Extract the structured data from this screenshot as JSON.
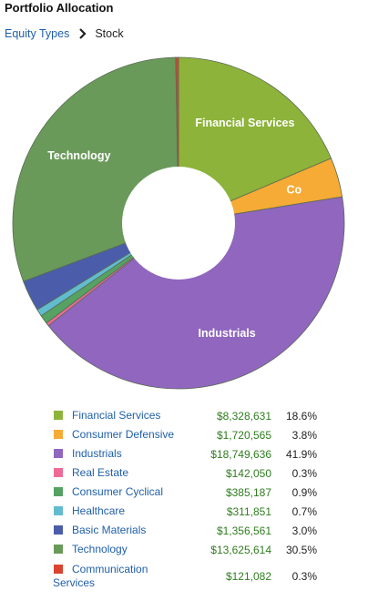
{
  "header": {
    "title": "Portfolio Allocation"
  },
  "breadcrumb": {
    "parent": "Equity Types",
    "current": "Stock"
  },
  "chart_data": {
    "type": "pie",
    "style": "donut",
    "categories": [
      "Financial Services",
      "Consumer Defensive",
      "Industrials",
      "Real Estate",
      "Consumer Cyclical",
      "Healthcare",
      "Basic Materials",
      "Technology",
      "Communication Services"
    ],
    "values": [
      8328631,
      1720565,
      18749636,
      142050,
      385187,
      311851,
      1356561,
      13625614,
      121082
    ],
    "colors": [
      "#8db33a",
      "#f5ab35",
      "#9066bf",
      "#ee6a97",
      "#55a262",
      "#62bccf",
      "#4b5daa",
      "#6a9a5a",
      "#d9442f"
    ],
    "slice_labels": [
      "Financial Services",
      "Co",
      "Industrials",
      "",
      "",
      "",
      "",
      "Technology",
      ""
    ]
  },
  "legend": [
    {
      "name": "Financial Services",
      "value": "$8,328,631",
      "pct": "18.6%",
      "color": "#8db33a"
    },
    {
      "name": "Consumer Defensive",
      "value": "$1,720,565",
      "pct": "3.8%",
      "color": "#f5ab35"
    },
    {
      "name": "Industrials",
      "value": "$18,749,636",
      "pct": "41.9%",
      "color": "#9066bf"
    },
    {
      "name": "Real Estate",
      "value": "$142,050",
      "pct": "0.3%",
      "color": "#ee6a97"
    },
    {
      "name": "Consumer Cyclical",
      "value": "$385,187",
      "pct": "0.9%",
      "color": "#55a262"
    },
    {
      "name": "Healthcare",
      "value": "$311,851",
      "pct": "0.7%",
      "color": "#62bccf"
    },
    {
      "name": "Basic Materials",
      "value": "$1,356,561",
      "pct": "3.0%",
      "color": "#4b5daa"
    },
    {
      "name": "Technology",
      "value": "$13,625,614",
      "pct": "30.5%",
      "color": "#6a9a5a"
    },
    {
      "name": "Communication Services",
      "value": "$121,082",
      "pct": "0.3%",
      "color": "#d9442f"
    }
  ]
}
